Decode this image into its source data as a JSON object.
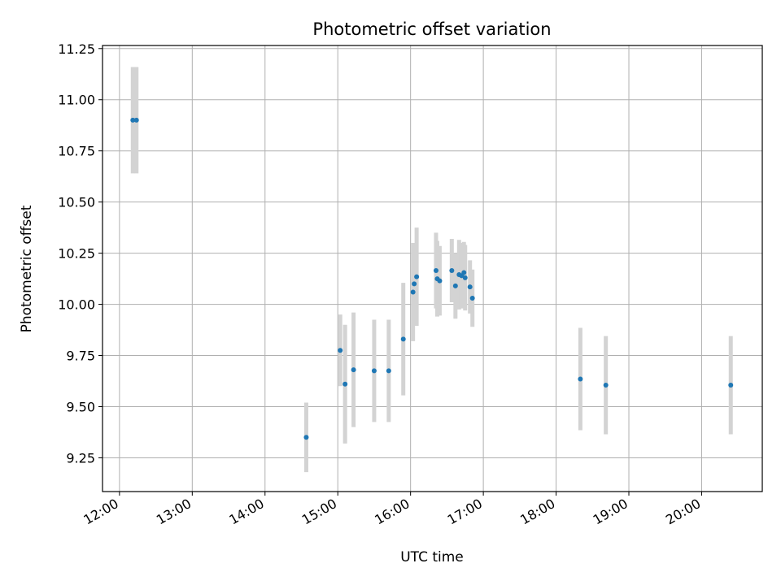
{
  "chart_data": {
    "type": "scatter",
    "title": "Photometric offset variation",
    "xlabel": "UTC time",
    "ylabel": "Photometric offset",
    "xlim": [
      "11:46",
      "20:50"
    ],
    "ylim": [
      9.085,
      11.265
    ],
    "x_ticks": [
      "12:00",
      "13:00",
      "14:00",
      "15:00",
      "16:00",
      "17:00",
      "18:00",
      "19:00",
      "20:00"
    ],
    "y_ticks": [
      "9.25",
      "9.50",
      "9.75",
      "10.00",
      "10.25",
      "10.50",
      "10.75",
      "11.00",
      "11.25"
    ],
    "grid": true,
    "error_bar_color": "#d3d3d3",
    "point_color": "#1f77b4",
    "points": [
      {
        "x": "12:11",
        "y": 10.9,
        "err": 0.26
      },
      {
        "x": "12:14",
        "y": 10.9,
        "err": 0.26
      },
      {
        "x": "14:34",
        "y": 9.35,
        "err": 0.17
      },
      {
        "x": "15:02",
        "y": 9.775,
        "err": 0.175
      },
      {
        "x": "15:06",
        "y": 9.61,
        "err": 0.29
      },
      {
        "x": "15:13",
        "y": 9.68,
        "err": 0.28
      },
      {
        "x": "15:30",
        "y": 9.675,
        "err": 0.25
      },
      {
        "x": "15:42",
        "y": 9.675,
        "err": 0.25
      },
      {
        "x": "15:54",
        "y": 9.83,
        "err": 0.275
      },
      {
        "x": "16:02",
        "y": 10.06,
        "err": 0.24
      },
      {
        "x": "16:03",
        "y": 10.1,
        "err": 0.2
      },
      {
        "x": "16:05",
        "y": 10.135,
        "err": 0.24
      },
      {
        "x": "16:21",
        "y": 10.165,
        "err": 0.185
      },
      {
        "x": "16:22",
        "y": 10.125,
        "err": 0.185
      },
      {
        "x": "16:24",
        "y": 10.115,
        "err": 0.17
      },
      {
        "x": "16:34",
        "y": 10.165,
        "err": 0.155
      },
      {
        "x": "16:37",
        "y": 10.09,
        "err": 0.16
      },
      {
        "x": "16:40",
        "y": 10.145,
        "err": 0.17
      },
      {
        "x": "16:42",
        "y": 10.14,
        "err": 0.16
      },
      {
        "x": "16:44",
        "y": 10.155,
        "err": 0.15
      },
      {
        "x": "16:45",
        "y": 10.13,
        "err": 0.16
      },
      {
        "x": "16:49",
        "y": 10.085,
        "err": 0.13
      },
      {
        "x": "16:51",
        "y": 10.03,
        "err": 0.14
      },
      {
        "x": "18:20",
        "y": 9.635,
        "err": 0.25
      },
      {
        "x": "18:41",
        "y": 9.605,
        "err": 0.24
      },
      {
        "x": "20:24",
        "y": 9.605,
        "err": 0.24
      }
    ]
  }
}
